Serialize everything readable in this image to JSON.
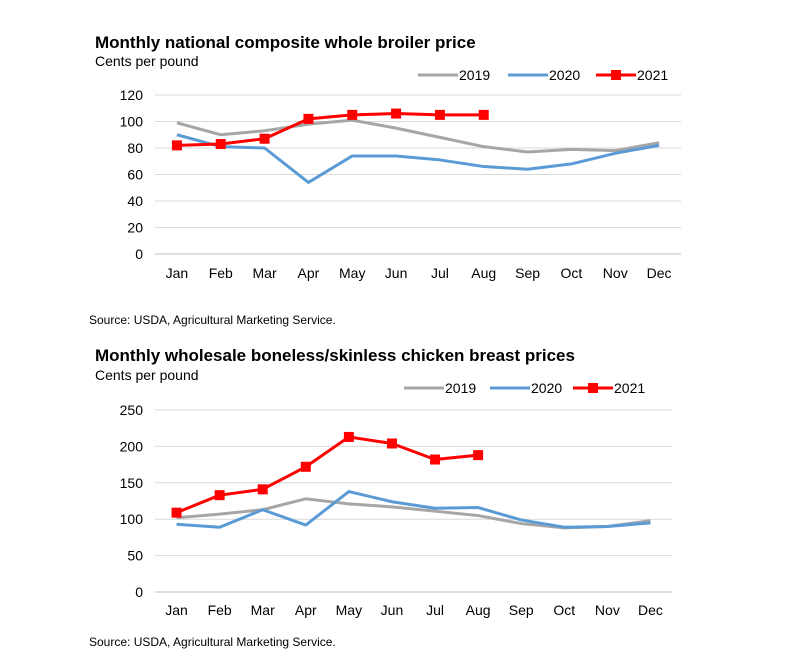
{
  "charts": [
    {
      "title": "Monthly national composite whole broiler price",
      "units_label": "Cents per pound",
      "source": "Source: USDA, Agricultural Marketing Service."
    },
    {
      "title": "Monthly wholesale boneless/skinless chicken breast prices",
      "units_label": "Cents per pound",
      "source": "Source: USDA, Agricultural Marketing Service."
    }
  ],
  "colors": {
    "2019": "#a6a6a6",
    "2020": "#5b9bd5",
    "2021": "#ff0000",
    "grid": "#d9d9d9"
  },
  "chart_data": [
    {
      "type": "line",
      "title": "Monthly national composite whole broiler price",
      "ylabel": "Cents per pound",
      "xlabel": "",
      "categories": [
        "Jan",
        "Feb",
        "Mar",
        "Apr",
        "May",
        "Jun",
        "Jul",
        "Aug",
        "Sep",
        "Oct",
        "Nov",
        "Dec"
      ],
      "ylim": [
        0,
        120
      ],
      "yticks": [
        0,
        20,
        40,
        60,
        80,
        100,
        120
      ],
      "grid": true,
      "legend": "top-right",
      "series": [
        {
          "name": "2019",
          "values": [
            99,
            90,
            93,
            98,
            101,
            95,
            88,
            81,
            77,
            79,
            78,
            84
          ]
        },
        {
          "name": "2020",
          "values": [
            90,
            81,
            80,
            54,
            74,
            74,
            71,
            66,
            64,
            68,
            76,
            82
          ]
        },
        {
          "name": "2021",
          "values": [
            82,
            83,
            87,
            102,
            105,
            106,
            105,
            105,
            null,
            null,
            null,
            null
          ]
        }
      ]
    },
    {
      "type": "line",
      "title": "Monthly wholesale boneless/skinless chicken breast prices",
      "ylabel": "Cents per pound",
      "xlabel": "",
      "categories": [
        "Jan",
        "Feb",
        "Mar",
        "Apr",
        "May",
        "Jun",
        "Jul",
        "Aug",
        "Sep",
        "Oct",
        "Nov",
        "Dec"
      ],
      "ylim": [
        0,
        250
      ],
      "yticks": [
        0,
        50,
        100,
        150,
        200,
        250
      ],
      "grid": true,
      "legend": "top-right",
      "series": [
        {
          "name": "2019",
          "values": [
            102,
            107,
            113,
            128,
            121,
            117,
            111,
            105,
            94,
            88,
            90,
            98
          ]
        },
        {
          "name": "2020",
          "values": [
            93,
            89,
            113,
            92,
            138,
            124,
            115,
            116,
            99,
            89,
            90,
            95
          ]
        },
        {
          "name": "2021",
          "values": [
            109,
            133,
            141,
            172,
            213,
            204,
            182,
            188,
            null,
            null,
            null,
            null
          ]
        }
      ]
    }
  ]
}
